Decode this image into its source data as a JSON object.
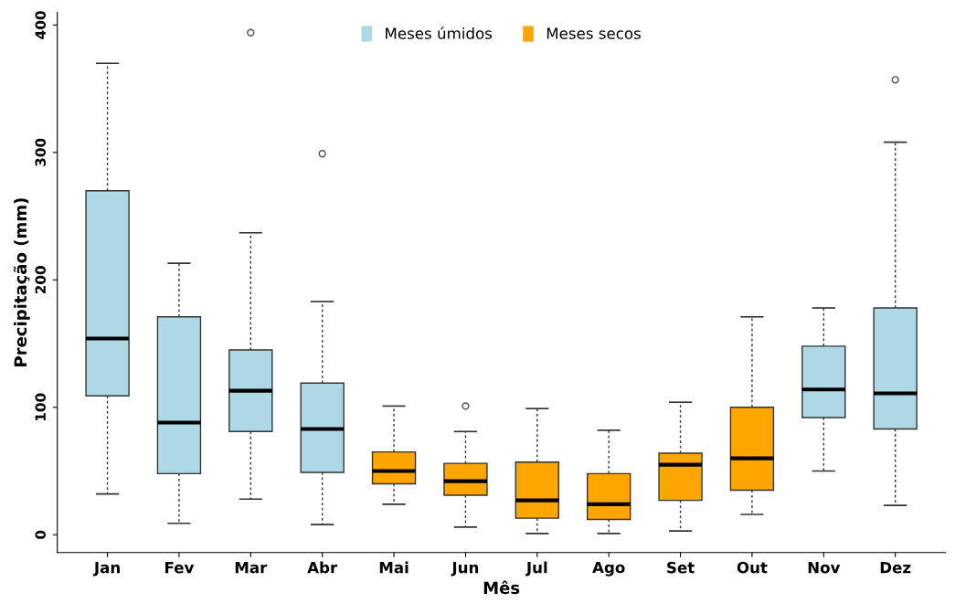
{
  "chart_data": {
    "type": "box",
    "xlabel": "Mês",
    "ylabel": "Precipitação (mm)",
    "categories": [
      "Jan",
      "Fev",
      "Mar",
      "Abr",
      "Mai",
      "Jun",
      "Jul",
      "Ago",
      "Set",
      "Out",
      "Nov",
      "Dez"
    ],
    "ylim": [
      -14,
      410
    ],
    "yticks": [
      0,
      100,
      200,
      300,
      400
    ],
    "grid": false,
    "legend": "top",
    "series": [
      {
        "name": "Meses úmidos",
        "color": "#add8e6",
        "boxes": [
          {
            "low": 32,
            "q1": 109,
            "median": 154,
            "q3": 270,
            "high": 370
          },
          {
            "low": 9,
            "q1": 48,
            "median": 88,
            "q3": 171,
            "high": 213
          },
          {
            "low": 28,
            "q1": 81,
            "median": 113,
            "q3": 145,
            "high": 237,
            "outliers": [
              394
            ]
          },
          {
            "low": 8,
            "q1": 49,
            "median": 83,
            "q3": 119,
            "high": 183,
            "outliers": [
              299
            ]
          },
          null,
          null,
          null,
          null,
          null,
          null,
          {
            "low": 50,
            "q1": 92,
            "median": 114,
            "q3": 148,
            "high": 178
          },
          {
            "low": 23,
            "q1": 83,
            "median": 111,
            "q3": 178,
            "high": 308,
            "outliers": [
              357
            ]
          }
        ]
      },
      {
        "name": "Meses secos",
        "color": "#ffa500",
        "boxes": [
          null,
          null,
          null,
          null,
          {
            "low": 24,
            "q1": 40,
            "median": 50,
            "q3": 65,
            "high": 101
          },
          {
            "low": 6,
            "q1": 31,
            "median": 42,
            "q3": 56,
            "high": 81,
            "outliers": [
              101
            ]
          },
          {
            "low": 1,
            "q1": 13,
            "median": 27,
            "q3": 57,
            "high": 99
          },
          {
            "low": 1,
            "q1": 12,
            "median": 24,
            "q3": 48,
            "high": 82
          },
          {
            "low": 3,
            "q1": 27,
            "median": 55,
            "q3": 64,
            "high": 104
          },
          {
            "low": 16,
            "q1": 35,
            "median": 60,
            "q3": 100,
            "high": 171
          },
          null,
          null
        ]
      }
    ]
  }
}
